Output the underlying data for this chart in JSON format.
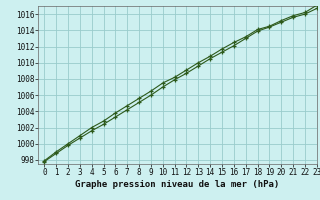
{
  "title": "Graphe pression niveau de la mer (hPa)",
  "background_color": "#cdf0f0",
  "grid_color": "#99cccc",
  "line_color": "#2d5a1b",
  "marker_color": "#2d5a1b",
  "xlim": [
    -0.5,
    23
  ],
  "ylim": [
    997.5,
    1017.0
  ],
  "xticks": [
    0,
    1,
    2,
    3,
    4,
    5,
    6,
    7,
    8,
    9,
    10,
    11,
    12,
    13,
    14,
    15,
    16,
    17,
    18,
    19,
    20,
    21,
    22,
    23
  ],
  "yticks": [
    998,
    1000,
    1002,
    1004,
    1006,
    1008,
    1010,
    1012,
    1014,
    1016
  ],
  "series1": [
    997.8,
    998.8,
    999.8,
    1000.7,
    1001.6,
    1002.4,
    1003.3,
    1004.2,
    1005.1,
    1006.0,
    1007.0,
    1007.9,
    1008.7,
    1009.6,
    1010.5,
    1011.3,
    1012.1,
    1013.0,
    1013.9,
    1014.4,
    1015.0,
    1015.6,
    1016.0,
    1016.7
  ],
  "series2": [
    997.9,
    999.0,
    1000.0,
    1001.0,
    1002.0,
    1002.8,
    1003.8,
    1004.7,
    1005.6,
    1006.5,
    1007.5,
    1008.2,
    1009.1,
    1010.0,
    1010.8,
    1011.7,
    1012.5,
    1013.2,
    1014.1,
    1014.5,
    1015.2,
    1015.8,
    1016.2,
    1017.1
  ],
  "tick_fontsize": 5.5,
  "label_fontsize": 6.5,
  "spine_color": "#666666"
}
